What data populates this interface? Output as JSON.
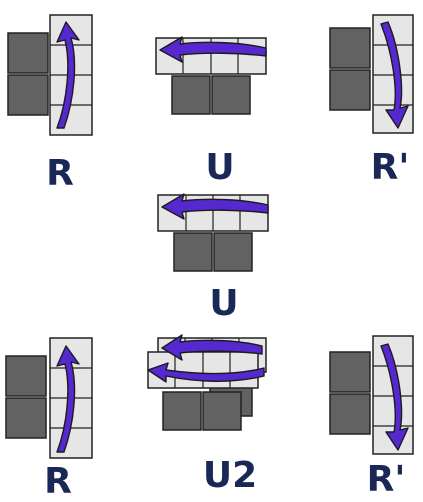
{
  "colors": {
    "dark_block": "#626262",
    "light_block": "#e6e6e6",
    "block_edge": "#222222",
    "arrow_fill": "#5528d0",
    "arrow_edge": "#1c1c1c",
    "label": "#1a2857"
  },
  "moves": [
    {
      "label": "R",
      "kind": "side",
      "direction": "up"
    },
    {
      "label": "U",
      "kind": "top",
      "direction": "left"
    },
    {
      "label": "R'",
      "kind": "side",
      "direction": "down"
    },
    {
      "label": "U",
      "kind": "top",
      "direction": "left"
    },
    {
      "label": "R",
      "kind": "side",
      "direction": "up"
    },
    {
      "label": "U2",
      "kind": "top-double",
      "direction": "left"
    },
    {
      "label": "R'",
      "kind": "side",
      "direction": "down"
    }
  ]
}
